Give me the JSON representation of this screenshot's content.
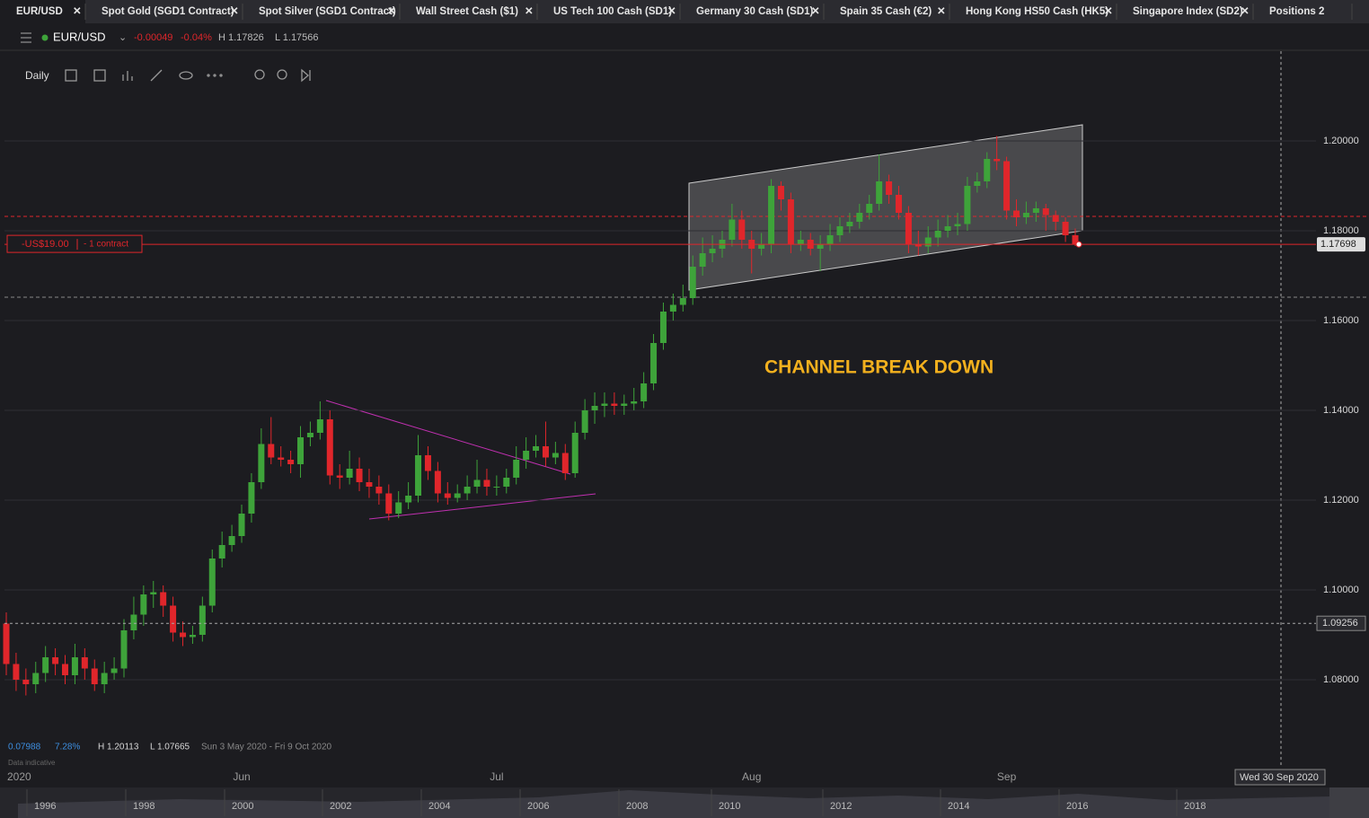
{
  "tabs": [
    "EUR/USD",
    "Spot Gold (SGD1 Contract)",
    "Spot Silver (SGD1 Contract)",
    "Wall Street Cash ($1)",
    "US Tech 100 Cash (SD1)",
    "Germany 30 Cash (SD1)",
    "Spain 35 Cash (€2)",
    "Hong Kong HS50 Cash (HK5)",
    "Singapore Index (SD2)",
    "Positions"
  ],
  "positions_count": "2",
  "header": {
    "symbol": "EUR/USD",
    "change": "-0.00049",
    "change_pct": "-0.04%",
    "high": "H 1.17826",
    "low": "L 1.17566"
  },
  "toolbar": {
    "timeframe": "Daily"
  },
  "info": {
    "change": "0.07988",
    "change_pct": "7.28%",
    "high": "H 1.20113",
    "low": "L 1.07665",
    "range": "Sun 3 May 2020 - Fri 9 Oct 2020",
    "note": "Data indicative"
  },
  "chart_data": {
    "type": "candlestick",
    "categories": [
      "2020",
      null,
      null,
      null,
      null,
      null,
      null,
      null,
      null,
      null,
      null,
      null,
      null,
      null,
      null,
      null,
      null,
      null,
      null,
      null,
      null,
      null,
      null,
      null,
      "Jun",
      null,
      null,
      null,
      null,
      null,
      null,
      null,
      null,
      null,
      null,
      null,
      null,
      null,
      null,
      null,
      null,
      null,
      null,
      null,
      null,
      null,
      null,
      null,
      null,
      null,
      "Jul",
      null,
      null,
      null,
      null,
      null,
      null,
      null,
      null,
      null,
      null,
      null,
      null,
      null,
      null,
      null,
      null,
      null,
      null,
      null,
      null,
      null,
      null,
      null,
      null,
      null,
      "Aug",
      null,
      null,
      null,
      null,
      null,
      null,
      null,
      null,
      null,
      null,
      null,
      null,
      null,
      null,
      null,
      null,
      null,
      null,
      null,
      null,
      null,
      null,
      null,
      null,
      null,
      "Sep",
      null,
      null,
      null,
      null,
      null,
      null,
      null
    ],
    "candles": [
      [
        1.0925,
        1.095,
        1.081,
        1.0835
      ],
      [
        1.0835,
        1.086,
        1.0775,
        1.08
      ],
      [
        1.08,
        1.0825,
        1.0765,
        1.079
      ],
      [
        1.079,
        1.084,
        1.077,
        1.0815
      ],
      [
        1.0815,
        1.0875,
        1.0795,
        1.085
      ],
      [
        1.085,
        1.087,
        1.081,
        1.0835
      ],
      [
        1.0835,
        1.0855,
        1.079,
        1.081
      ],
      [
        1.081,
        1.088,
        1.079,
        1.085
      ],
      [
        1.085,
        1.087,
        1.08,
        1.0825
      ],
      [
        1.0825,
        1.0845,
        1.0775,
        1.079
      ],
      [
        1.079,
        1.084,
        1.077,
        1.0815
      ],
      [
        1.0815,
        1.085,
        1.08,
        1.0825
      ],
      [
        1.0825,
        1.0935,
        1.0805,
        1.091
      ],
      [
        1.091,
        1.0985,
        1.089,
        1.0945
      ],
      [
        1.0945,
        1.101,
        1.092,
        1.099
      ],
      [
        1.099,
        1.102,
        1.096,
        1.0995
      ],
      [
        1.0995,
        1.101,
        1.094,
        1.0965
      ],
      [
        1.0965,
        1.0985,
        1.0885,
        1.0905
      ],
      [
        1.0905,
        1.093,
        1.0875,
        1.0895
      ],
      [
        1.0895,
        1.092,
        1.088,
        1.09
      ],
      [
        1.09,
        1.0985,
        1.0885,
        1.0965
      ],
      [
        1.0965,
        1.109,
        1.095,
        1.107
      ],
      [
        1.107,
        1.113,
        1.105,
        1.11
      ],
      [
        1.11,
        1.1145,
        1.1085,
        1.112
      ],
      [
        1.112,
        1.119,
        1.1105,
        1.117
      ],
      [
        1.117,
        1.126,
        1.115,
        1.124
      ],
      [
        1.124,
        1.136,
        1.1225,
        1.1325
      ],
      [
        1.1325,
        1.1385,
        1.128,
        1.1295
      ],
      [
        1.1295,
        1.132,
        1.1275,
        1.129
      ],
      [
        1.129,
        1.131,
        1.126,
        1.128
      ],
      [
        1.128,
        1.1365,
        1.125,
        1.134
      ],
      [
        1.134,
        1.1375,
        1.132,
        1.135
      ],
      [
        1.135,
        1.142,
        1.1335,
        1.138
      ],
      [
        1.138,
        1.14,
        1.1235,
        1.1255
      ],
      [
        1.1255,
        1.128,
        1.1225,
        1.125
      ],
      [
        1.125,
        1.131,
        1.1235,
        1.127
      ],
      [
        1.127,
        1.1295,
        1.122,
        1.124
      ],
      [
        1.124,
        1.127,
        1.1205,
        1.123
      ],
      [
        1.123,
        1.1255,
        1.119,
        1.1215
      ],
      [
        1.1215,
        1.1235,
        1.1155,
        1.117
      ],
      [
        1.117,
        1.122,
        1.116,
        1.1195
      ],
      [
        1.1195,
        1.124,
        1.118,
        1.121
      ],
      [
        1.121,
        1.1345,
        1.1195,
        1.13
      ],
      [
        1.13,
        1.132,
        1.1245,
        1.1265
      ],
      [
        1.1265,
        1.1285,
        1.1195,
        1.1215
      ],
      [
        1.1215,
        1.124,
        1.119,
        1.1205
      ],
      [
        1.1205,
        1.1235,
        1.1195,
        1.1215
      ],
      [
        1.1215,
        1.1255,
        1.12,
        1.123
      ],
      [
        1.123,
        1.129,
        1.1215,
        1.1245
      ],
      [
        1.1245,
        1.127,
        1.121,
        1.123
      ],
      [
        1.123,
        1.1255,
        1.121,
        1.123
      ],
      [
        1.123,
        1.127,
        1.1215,
        1.125
      ],
      [
        1.125,
        1.132,
        1.1235,
        1.129
      ],
      [
        1.129,
        1.134,
        1.127,
        1.131
      ],
      [
        1.131,
        1.1345,
        1.1295,
        1.132
      ],
      [
        1.132,
        1.1375,
        1.1275,
        1.1295
      ],
      [
        1.1295,
        1.133,
        1.128,
        1.1305
      ],
      [
        1.1305,
        1.1325,
        1.1245,
        1.126
      ],
      [
        1.126,
        1.1375,
        1.125,
        1.135
      ],
      [
        1.135,
        1.1425,
        1.1335,
        1.14
      ],
      [
        1.14,
        1.144,
        1.137,
        1.141
      ],
      [
        1.141,
        1.144,
        1.1385,
        1.1415
      ],
      [
        1.1415,
        1.144,
        1.139,
        1.141
      ],
      [
        1.141,
        1.1435,
        1.139,
        1.1415
      ],
      [
        1.1415,
        1.145,
        1.14,
        1.142
      ],
      [
        1.142,
        1.1485,
        1.1405,
        1.146
      ],
      [
        1.146,
        1.157,
        1.1445,
        1.155
      ],
      [
        1.155,
        1.164,
        1.1535,
        1.162
      ],
      [
        1.162,
        1.166,
        1.16,
        1.1635
      ],
      [
        1.1635,
        1.168,
        1.162,
        1.165
      ],
      [
        1.165,
        1.1745,
        1.1635,
        1.172
      ],
      [
        1.172,
        1.1785,
        1.17,
        1.175
      ],
      [
        1.175,
        1.179,
        1.173,
        1.176
      ],
      [
        1.176,
        1.18,
        1.174,
        1.178
      ],
      [
        1.178,
        1.186,
        1.1765,
        1.1825
      ],
      [
        1.1825,
        1.1845,
        1.176,
        1.178
      ],
      [
        1.178,
        1.18,
        1.1705,
        1.176
      ],
      [
        1.176,
        1.1795,
        1.1745,
        1.177
      ],
      [
        1.177,
        1.1915,
        1.175,
        1.19
      ],
      [
        1.19,
        1.191,
        1.1845,
        1.187
      ],
      [
        1.187,
        1.1885,
        1.175,
        1.177
      ],
      [
        1.177,
        1.18,
        1.1755,
        1.178
      ],
      [
        1.178,
        1.1795,
        1.1745,
        1.176
      ],
      [
        1.176,
        1.179,
        1.171,
        1.177
      ],
      [
        1.177,
        1.1815,
        1.1755,
        1.179
      ],
      [
        1.179,
        1.183,
        1.1775,
        1.181
      ],
      [
        1.181,
        1.184,
        1.1795,
        1.182
      ],
      [
        1.182,
        1.186,
        1.1805,
        1.184
      ],
      [
        1.184,
        1.188,
        1.1825,
        1.186
      ],
      [
        1.186,
        1.197,
        1.1845,
        1.191
      ],
      [
        1.191,
        1.1925,
        1.186,
        1.188
      ],
      [
        1.188,
        1.19,
        1.1825,
        1.184
      ],
      [
        1.184,
        1.1855,
        1.175,
        1.177
      ],
      [
        1.177,
        1.18,
        1.1745,
        1.1765
      ],
      [
        1.1765,
        1.181,
        1.175,
        1.1785
      ],
      [
        1.1785,
        1.1825,
        1.1765,
        1.18
      ],
      [
        1.18,
        1.1835,
        1.1785,
        1.181
      ],
      [
        1.181,
        1.184,
        1.179,
        1.1815
      ],
      [
        1.1815,
        1.192,
        1.18,
        1.19
      ],
      [
        1.19,
        1.193,
        1.1885,
        1.191
      ],
      [
        1.191,
        1.1975,
        1.1895,
        1.196
      ],
      [
        1.196,
        1.2011,
        1.1935,
        1.1955
      ],
      [
        1.1955,
        1.1965,
        1.1825,
        1.1845
      ],
      [
        1.1845,
        1.187,
        1.181,
        1.183
      ],
      [
        1.183,
        1.1865,
        1.1815,
        1.184
      ],
      [
        1.184,
        1.1865,
        1.182,
        1.185
      ],
      [
        1.185,
        1.186,
        1.18,
        1.1835
      ],
      [
        1.1835,
        1.1845,
        1.18,
        1.182
      ],
      [
        1.182,
        1.183,
        1.1775,
        1.179
      ],
      [
        1.179,
        1.1805,
        1.1766,
        1.177
      ]
    ],
    "up_color": "#3ea33a",
    "down_color": "#e0262b",
    "ylim": [
      1.0674,
      1.22
    ],
    "yticks": [
      {
        "value": 1.08,
        "label": "1.08000"
      },
      {
        "value": 1.1,
        "label": "1.10000"
      },
      {
        "value": 1.12,
        "label": "1.12000"
      },
      {
        "value": 1.14,
        "label": "1.14000"
      },
      {
        "value": 1.16,
        "label": "1.16000"
      },
      {
        "value": 1.18,
        "label": "1.18000"
      },
      {
        "value": 1.2,
        "label": "1.20000"
      }
    ],
    "grid": true,
    "current_price": 1.17698,
    "crosshair_price": 1.09256,
    "crosshair_date": "Wed 30 Sep 2020",
    "annotation": "CHANNEL BREAK DOWN",
    "position": {
      "pnl": "-US$19.00",
      "size": "- 1 contract"
    }
  },
  "navigator": {
    "years": [
      1996,
      1998,
      2000,
      2002,
      2004,
      2006,
      2008,
      2010,
      2012,
      2014,
      2016,
      2018
    ]
  }
}
